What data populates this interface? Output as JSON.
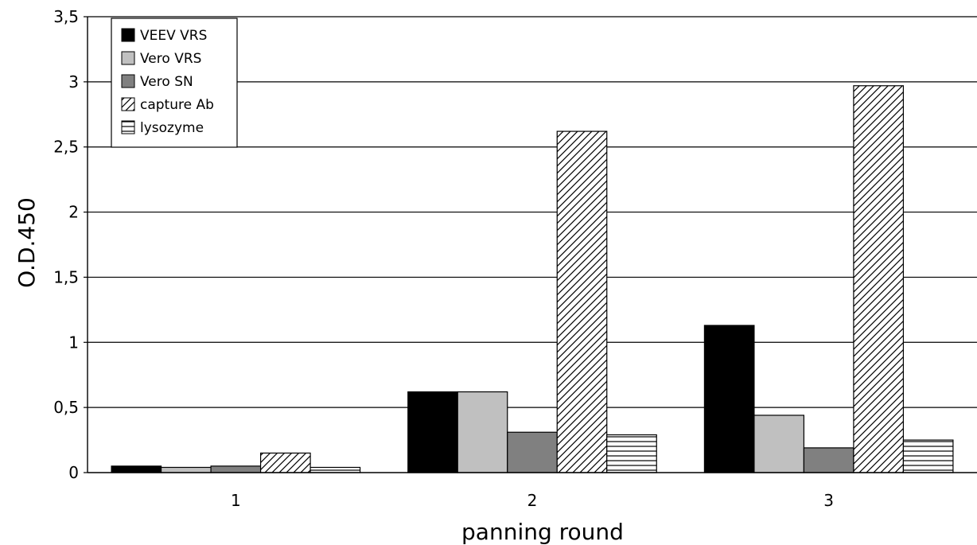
{
  "chart_data": {
    "type": "bar",
    "title": "",
    "xlabel": "panning round",
    "ylabel": "O.D.450",
    "categories": [
      "1",
      "2",
      "3"
    ],
    "ylim": [
      0,
      3.5
    ],
    "yticks": [
      0,
      0.5,
      1,
      1.5,
      2,
      2.5,
      3,
      3.5
    ],
    "ytick_labels": [
      "0",
      "0,5",
      "1",
      "1,5",
      "2",
      "2,5",
      "3",
      "3,5"
    ],
    "grid": true,
    "legend_position": "top-left",
    "series": [
      {
        "name": "VEEV VRS",
        "values": [
          0.05,
          0.62,
          1.13
        ],
        "fill": "#000000",
        "pattern": "solid"
      },
      {
        "name": "Vero VRS",
        "values": [
          0.04,
          0.62,
          0.44
        ],
        "fill": "#c0c0c0",
        "pattern": "solid"
      },
      {
        "name": "Vero SN",
        "values": [
          0.05,
          0.31,
          0.19
        ],
        "fill": "#808080",
        "pattern": "solid"
      },
      {
        "name": "capture Ab",
        "values": [
          0.15,
          2.62,
          2.97
        ],
        "fill": "#ffffff",
        "pattern": "diagonal"
      },
      {
        "name": "lysozyme",
        "values": [
          0.04,
          0.29,
          0.25
        ],
        "fill": "#ffffff",
        "pattern": "horizontal"
      }
    ]
  }
}
